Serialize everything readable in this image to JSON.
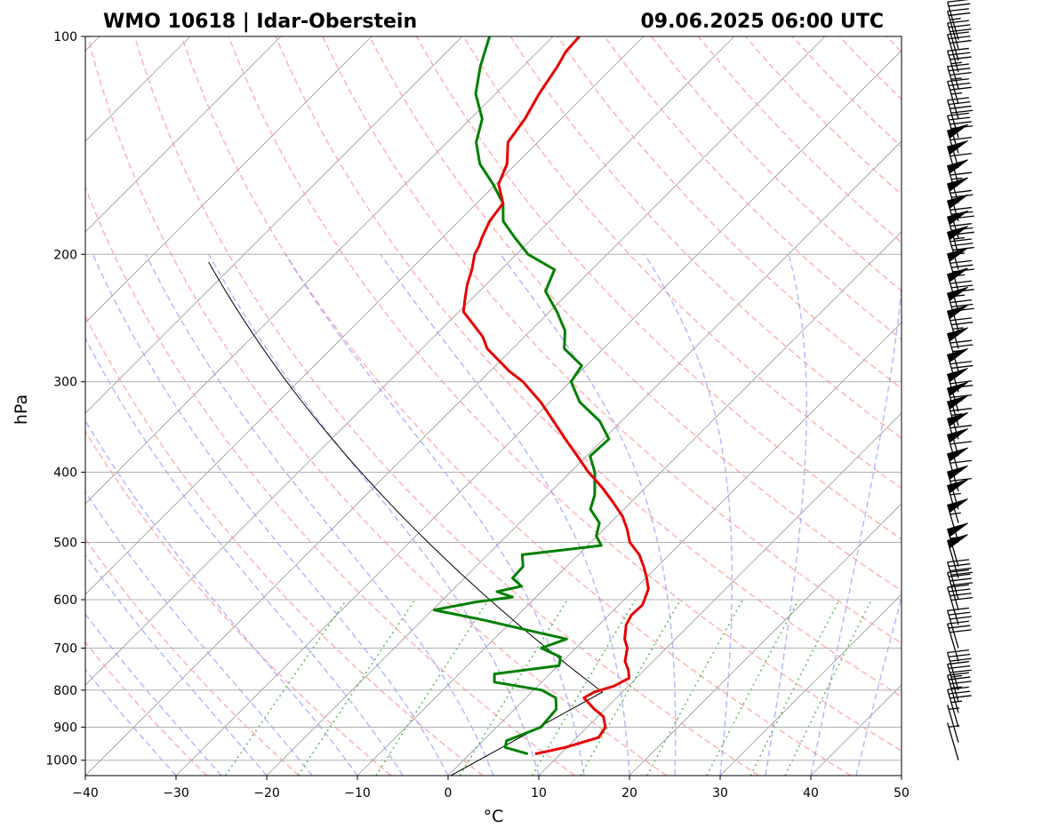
{
  "header": {
    "station": "WMO 10618 | Idar-Oberstein",
    "time": "09.06.2025 06:00 UTC"
  },
  "chart_data": {
    "type": "skew-t",
    "xlabel": "°C",
    "ylabel": "hPa",
    "xlim": [
      -40,
      50
    ],
    "ylim": [
      1050,
      100
    ],
    "x_ticks": [
      -40,
      -30,
      -20,
      -10,
      0,
      10,
      20,
      30,
      40,
      50
    ],
    "y_ticks": [
      100,
      200,
      300,
      400,
      500,
      600,
      700,
      800,
      900,
      1000
    ],
    "pressure_scale": "log",
    "grid": true,
    "reference_lines": {
      "isotherms": "gray solid",
      "dry_adiabats": "red dashed",
      "moist_adiabats": "blue dashed",
      "mixing_ratio": "green dotted",
      "parcel_path": "black solid"
    },
    "colors": {
      "temperature": "#e60000",
      "dewpoint": "#008000",
      "isotherm": "#999999",
      "dry_adiabat": "#ff9a9a",
      "moist_adiabat": "#9a9aff",
      "mixing_ratio": "#4daf4a",
      "grid": "#b0b0b0",
      "barb": "#000000"
    },
    "temperature": {
      "p": [
        980,
        960,
        930,
        900,
        870,
        850,
        820,
        805,
        790,
        770,
        750,
        730,
        700,
        680,
        650,
        630,
        610,
        580,
        560,
        540,
        520,
        500,
        480,
        460,
        440,
        420,
        400,
        380,
        360,
        340,
        320,
        300,
        290,
        280,
        270,
        260,
        250,
        240,
        230,
        220,
        210,
        200,
        195,
        190,
        180,
        170,
        160,
        150,
        140,
        130,
        120,
        110,
        105,
        100
      ],
      "t": [
        7.2,
        9.8,
        12.4,
        12.0,
        10.6,
        8.8,
        6.4,
        6.9,
        8.4,
        9.2,
        8.2,
        6.9,
        5.7,
        4.4,
        3.0,
        2.5,
        2.6,
        1.5,
        0.1,
        -1.5,
        -3.3,
        -5.7,
        -7.4,
        -9.4,
        -12.0,
        -14.8,
        -18.0,
        -21.0,
        -24.2,
        -27.5,
        -31.0,
        -35.2,
        -37.9,
        -40.3,
        -42.8,
        -44.6,
        -47.0,
        -49.5,
        -50.8,
        -52.1,
        -53.2,
        -54.6,
        -55.0,
        -55.6,
        -56.6,
        -57.1,
        -59.7,
        -61.0,
        -63.3,
        -64.0,
        -65.2,
        -66.2,
        -66.9,
        -67.1
      ]
    },
    "dewpoint": {
      "p": [
        980,
        960,
        940,
        900,
        850,
        820,
        800,
        780,
        760,
        740,
        720,
        700,
        680,
        660,
        640,
        620,
        605,
        595,
        585,
        575,
        560,
        540,
        520,
        505,
        490,
        470,
        450,
        430,
        400,
        380,
        360,
        340,
        320,
        300,
        285,
        270,
        255,
        240,
        225,
        210,
        200,
        190,
        180,
        170,
        160,
        150,
        140,
        130,
        120,
        110,
        100
      ],
      "t": [
        6.4,
        3.2,
        2.6,
        4.9,
        4.6,
        3.3,
        0.9,
        -5.2,
        -6.1,
        0.1,
        -0.7,
        -3.8,
        -2.0,
        -7.6,
        -13.3,
        -19.8,
        -16.2,
        -12.6,
        -14.9,
        -12.8,
        -14.7,
        -14.8,
        -16.2,
        -8.5,
        -10.1,
        -11.2,
        -13.7,
        -14.8,
        -17.3,
        -19.6,
        -19.4,
        -22.4,
        -26.7,
        -29.9,
        -30.5,
        -34.3,
        -36.2,
        -39.2,
        -42.7,
        -44.1,
        -48.7,
        -51.9,
        -55.1,
        -57.1,
        -60.3,
        -64.0,
        -66.8,
        -68.7,
        -72.2,
        -74.7,
        -77.0
      ]
    },
    "parcel": {
      "p": [
        1050,
        805
      ],
      "t": [
        0.3,
        7.8
      ],
      "note": "continues as dry adiabat aloft"
    },
    "wind_barbs": [
      {
        "p": 1000,
        "kt": 5
      },
      {
        "p": 945,
        "kt": 5
      },
      {
        "p": 900,
        "kt": 35
      },
      {
        "p": 860,
        "kt": 35
      },
      {
        "p": 830,
        "kt": 35
      },
      {
        "p": 800,
        "kt": 30
      },
      {
        "p": 730,
        "kt": 30
      },
      {
        "p": 700,
        "kt": 30
      },
      {
        "p": 650,
        "kt": 40
      },
      {
        "p": 620,
        "kt": 40
      },
      {
        "p": 600,
        "kt": 40
      },
      {
        "p": 560,
        "kt": 50
      },
      {
        "p": 540,
        "kt": 55
      },
      {
        "p": 500,
        "kt": 55
      },
      {
        "p": 470,
        "kt": 55
      },
      {
        "p": 450,
        "kt": 60
      },
      {
        "p": 425,
        "kt": 60
      },
      {
        "p": 400,
        "kt": 60
      },
      {
        "p": 380,
        "kt": 60
      },
      {
        "p": 360,
        "kt": 65
      },
      {
        "p": 345,
        "kt": 65
      },
      {
        "p": 330,
        "kt": 70
      },
      {
        "p": 310,
        "kt": 70
      },
      {
        "p": 290,
        "kt": 75
      },
      {
        "p": 270,
        "kt": 75
      },
      {
        "p": 255,
        "kt": 80
      },
      {
        "p": 240,
        "kt": 85
      },
      {
        "p": 225,
        "kt": 85
      },
      {
        "p": 210,
        "kt": 85
      },
      {
        "p": 200,
        "kt": 85
      },
      {
        "p": 190,
        "kt": 80
      },
      {
        "p": 180,
        "kt": 70
      },
      {
        "p": 170,
        "kt": 65
      },
      {
        "p": 160,
        "kt": 60
      },
      {
        "p": 152,
        "kt": 60
      },
      {
        "p": 145,
        "kt": 40
      },
      {
        "p": 138,
        "kt": 40
      },
      {
        "p": 130,
        "kt": 35
      },
      {
        "p": 124,
        "kt": 35
      },
      {
        "p": 118,
        "kt": 35
      },
      {
        "p": 112,
        "kt": 30
      },
      {
        "p": 108,
        "kt": 30
      },
      {
        "p": 104,
        "kt": 25
      },
      {
        "p": 101,
        "kt": 20
      }
    ]
  }
}
